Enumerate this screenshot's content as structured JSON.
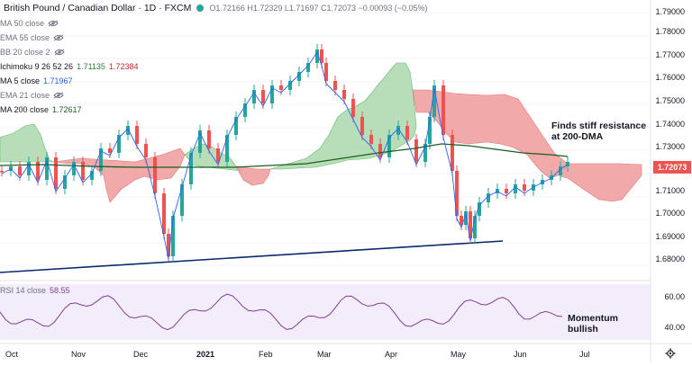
{
  "header": {
    "symbol": "British Pound / Canadian Dollar · 1D · FXCM",
    "ohlc": "O1.72166 H1.72329 L1.71697 C1.72073 −0.00093 (−0.05%)"
  },
  "indicators": [
    {
      "label": "MA 50 close",
      "value": "",
      "hidden": true
    },
    {
      "label": "EMA 55 close",
      "value": "",
      "hidden": true
    },
    {
      "label": "BB 20 close 2",
      "value": "",
      "hidden": true
    },
    {
      "label": "Ichimoku 9 26 52 26",
      "value": "1.71135",
      "value2": "1.72384"
    },
    {
      "label": "MA 5 close",
      "value": "1.71967"
    },
    {
      "label": "EMA 21 close",
      "value": "",
      "hidden": true
    },
    {
      "label": "MA 200 close",
      "value": "1.72617"
    }
  ],
  "rsi": {
    "label": "RSI 14 close",
    "value": "58.55"
  },
  "price_axis": [
    "1.79000",
    "1.78000",
    "1.77000",
    "1.76000",
    "1.75000",
    "1.74000",
    "1.73000",
    "1.72000",
    "1.71000",
    "1.70000",
    "1.69000",
    "1.68000"
  ],
  "last_price": "1.72073",
  "rsi_axis": [
    "60.00",
    "40.00"
  ],
  "time_axis": [
    "Oct",
    "Nov",
    "Dec",
    "2021",
    "Feb",
    "Mar",
    "Apr",
    "May",
    "Jun",
    "Jul"
  ],
  "annotations": {
    "resistance": [
      "Finds stiff resistance",
      "at 200-DMA"
    ],
    "momentum": [
      "Momentum",
      "bullish"
    ]
  },
  "colors": {
    "up": "#26a69a",
    "down": "#ef5350",
    "ma200": "#1b5e20",
    "ma5": "#2962ff",
    "trend": "#0d2a6e",
    "rsi": "#7e3f98"
  }
}
